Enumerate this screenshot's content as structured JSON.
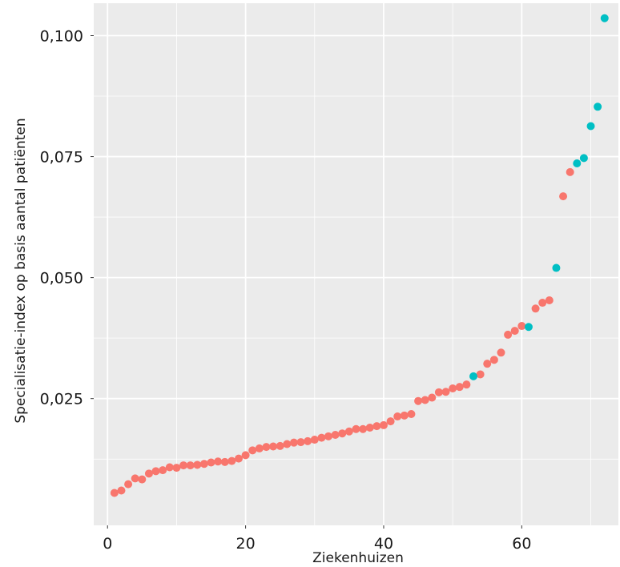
{
  "chart_data": {
    "type": "scatter",
    "xlabel": "Ziekenhuizen",
    "ylabel": "Specialisatie-index op basis aantal patiënten",
    "xlim": [
      -2,
      74
    ],
    "ylim": [
      -0.0012,
      0.1067
    ],
    "x_ticks": [
      0,
      20,
      40,
      60
    ],
    "x_tick_labels": [
      "0",
      "20",
      "40",
      "60"
    ],
    "y_ticks": [
      0.025,
      0.05,
      0.075,
      0.1
    ],
    "y_tick_labels": [
      "0,025",
      "0,050",
      "0,075",
      "0,100"
    ],
    "grid": true,
    "legend": "none",
    "colors": {
      "red": "#F8766D",
      "teal": "#00BFC4",
      "panel": "#EBEBEB",
      "grid": "#FFFFFF"
    },
    "series": [
      {
        "color": "#F8766D",
        "points": [
          [
            1,
            0.0055
          ],
          [
            2,
            0.006
          ],
          [
            3,
            0.0073
          ],
          [
            4,
            0.0085
          ],
          [
            5,
            0.0083
          ],
          [
            6,
            0.0095
          ],
          [
            7,
            0.01
          ],
          [
            8,
            0.0102
          ],
          [
            9,
            0.0108
          ],
          [
            10,
            0.0107
          ],
          [
            11,
            0.0112
          ],
          [
            12,
            0.0112
          ],
          [
            13,
            0.0113
          ],
          [
            14,
            0.0115
          ],
          [
            15,
            0.0118
          ],
          [
            16,
            0.012
          ],
          [
            17,
            0.0119
          ],
          [
            18,
            0.0121
          ],
          [
            19,
            0.0126
          ],
          [
            20,
            0.0133
          ],
          [
            21,
            0.0143
          ],
          [
            22,
            0.0147
          ],
          [
            23,
            0.015
          ],
          [
            24,
            0.0151
          ],
          [
            25,
            0.0152
          ],
          [
            26,
            0.0156
          ],
          [
            27,
            0.0159
          ],
          [
            28,
            0.016
          ],
          [
            29,
            0.0162
          ],
          [
            30,
            0.0165
          ],
          [
            31,
            0.0169
          ],
          [
            32,
            0.0172
          ],
          [
            33,
            0.0175
          ],
          [
            34,
            0.0178
          ],
          [
            35,
            0.0182
          ],
          [
            36,
            0.0187
          ],
          [
            37,
            0.0187
          ],
          [
            38,
            0.019
          ],
          [
            39,
            0.0193
          ],
          [
            40,
            0.0195
          ],
          [
            41,
            0.0203
          ],
          [
            42,
            0.0213
          ],
          [
            43,
            0.0215
          ],
          [
            44,
            0.0218
          ],
          [
            45,
            0.0245
          ],
          [
            46,
            0.0247
          ],
          [
            47,
            0.0252
          ],
          [
            48,
            0.0263
          ],
          [
            49,
            0.0264
          ],
          [
            50,
            0.0271
          ],
          [
            51,
            0.0274
          ],
          [
            52,
            0.0279
          ],
          [
            54,
            0.03
          ],
          [
            55,
            0.0322
          ],
          [
            56,
            0.033
          ],
          [
            57,
            0.0345
          ],
          [
            58,
            0.0382
          ],
          [
            59,
            0.039
          ],
          [
            60,
            0.04
          ],
          [
            62,
            0.0436
          ],
          [
            63,
            0.0448
          ],
          [
            64,
            0.0453
          ],
          [
            66,
            0.0668
          ],
          [
            67,
            0.0718
          ]
        ]
      },
      {
        "color": "#00BFC4",
        "points": [
          [
            53,
            0.0296
          ],
          [
            61,
            0.0398
          ],
          [
            65,
            0.052
          ],
          [
            68,
            0.0736
          ],
          [
            69,
            0.0747
          ],
          [
            70,
            0.0813
          ],
          [
            71,
            0.0853
          ],
          [
            72,
            0.1036
          ]
        ]
      }
    ]
  }
}
